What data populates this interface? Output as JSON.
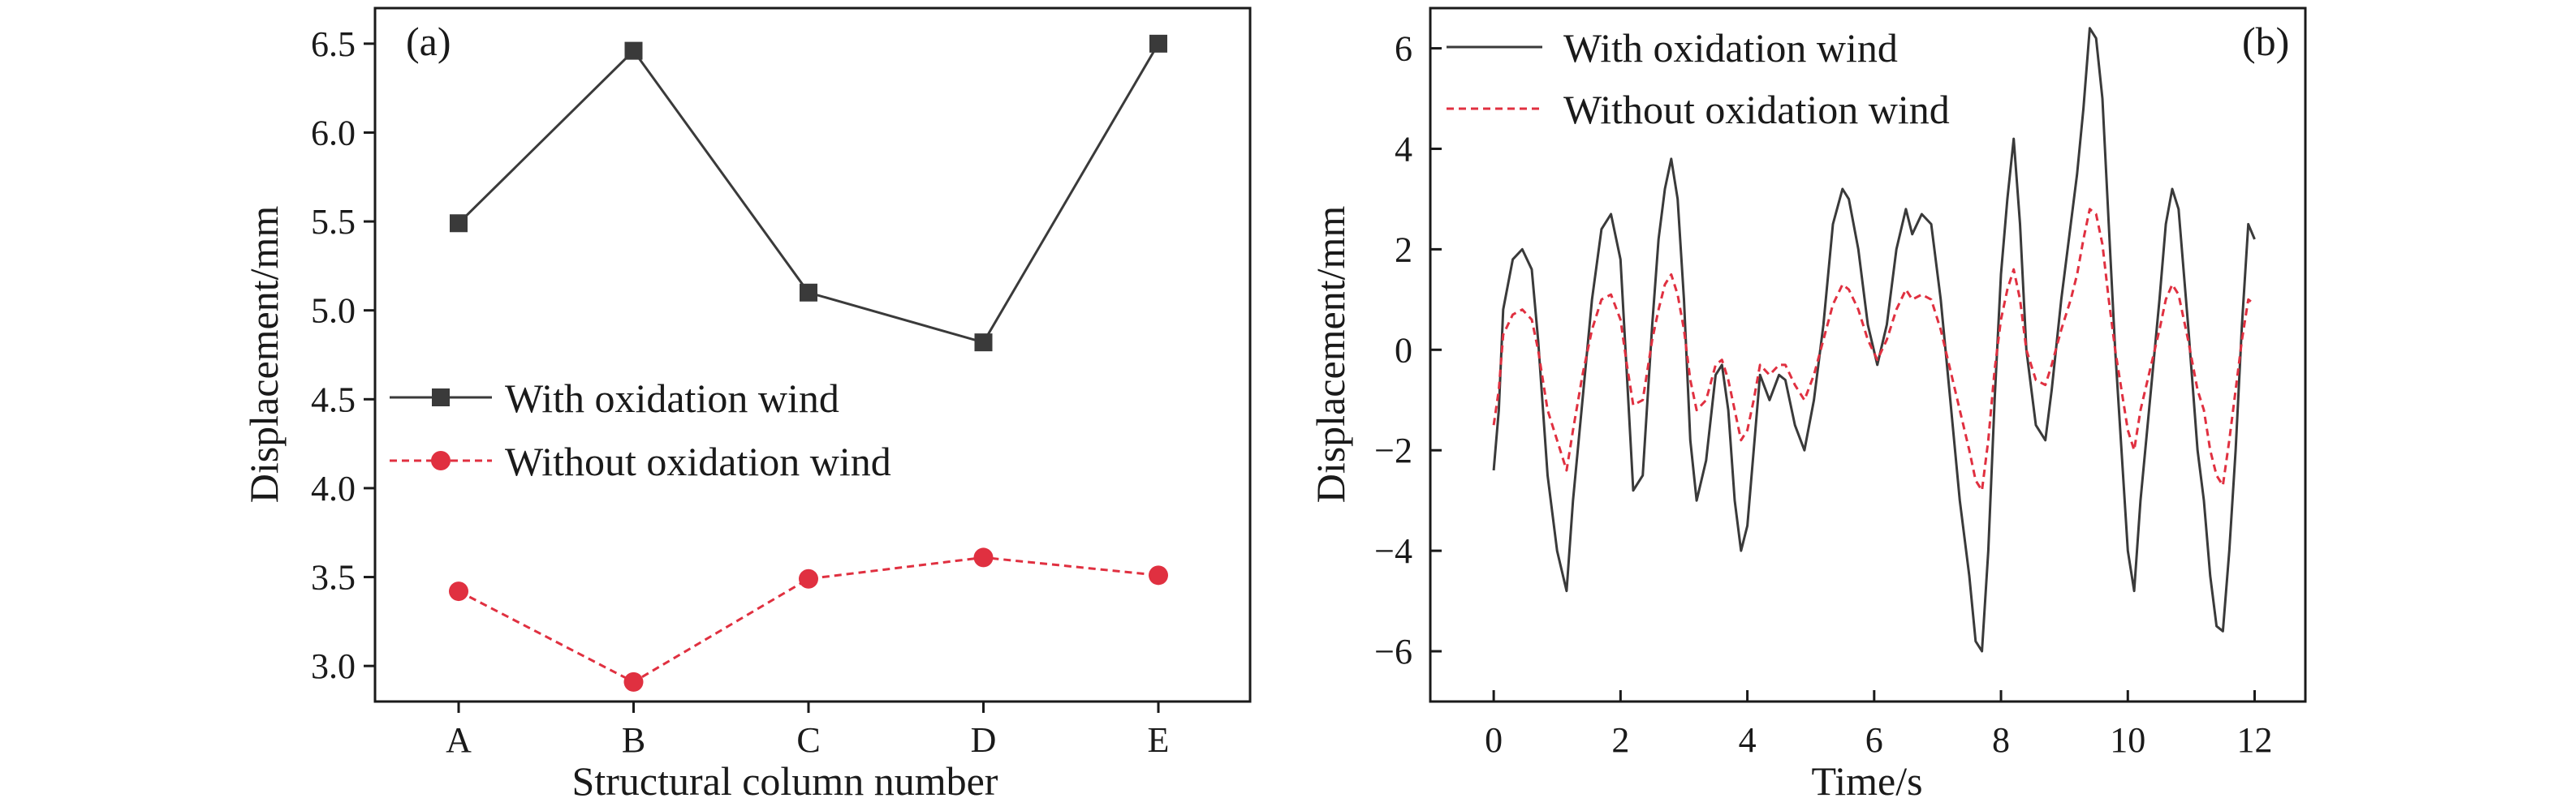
{
  "chart_data": [
    {
      "panel_label": "(a)",
      "type": "line",
      "xlabel": "Structural column number",
      "ylabel": "Displacement/mm",
      "categories": [
        "A",
        "B",
        "C",
        "D",
        "E"
      ],
      "ylim": [
        2.8,
        6.7
      ],
      "yticks": [
        3.0,
        3.5,
        4.0,
        4.5,
        5.0,
        5.5,
        6.0,
        6.5
      ],
      "ytick_labels": [
        "3.0",
        "3.5",
        "4.0",
        "4.5",
        "5.0",
        "5.5",
        "6.0",
        "6.5"
      ],
      "legend_position": "center-left",
      "series": [
        {
          "name": "With oxidation wind",
          "values": [
            5.49,
            6.46,
            5.1,
            4.82,
            6.5
          ],
          "color": "#3a3a3a",
          "marker": "square",
          "line": "solid"
        },
        {
          "name": "Without oxidation wind",
          "values": [
            3.42,
            2.91,
            3.49,
            3.61,
            3.51
          ],
          "color": "#e03040",
          "marker": "circle",
          "line": "dashed"
        }
      ]
    },
    {
      "panel_label": "(b)",
      "type": "line",
      "xlabel": "Time/s",
      "ylabel": "Displacement/mm",
      "xlim": [
        -1,
        12.8
      ],
      "ylim": [
        -7,
        6.8
      ],
      "xticks": [
        0,
        2,
        4,
        6,
        8,
        10,
        12
      ],
      "xtick_labels": [
        "0",
        "2",
        "4",
        "6",
        "8",
        "10",
        "12"
      ],
      "yticks": [
        -6,
        -4,
        -2,
        0,
        2,
        4,
        6
      ],
      "ytick_labels": [
        "−6",
        "−4",
        "−2",
        "0",
        "2",
        "4",
        "6"
      ],
      "legend_position": "top-left",
      "series": [
        {
          "name": "With oxidation wind",
          "color": "#3a3a3a",
          "line": "solid",
          "x": [
            0,
            0.08,
            0.15,
            0.3,
            0.45,
            0.6,
            0.7,
            0.85,
            1.0,
            1.15,
            1.25,
            1.4,
            1.55,
            1.7,
            1.85,
            2.0,
            2.1,
            2.2,
            2.35,
            2.5,
            2.6,
            2.7,
            2.8,
            2.9,
            3.0,
            3.1,
            3.2,
            3.35,
            3.5,
            3.6,
            3.7,
            3.8,
            3.9,
            4.0,
            4.1,
            4.2,
            4.35,
            4.5,
            4.6,
            4.75,
            4.9,
            5.05,
            5.2,
            5.35,
            5.5,
            5.6,
            5.75,
            5.9,
            6.05,
            6.2,
            6.35,
            6.5,
            6.6,
            6.75,
            6.9,
            7.05,
            7.2,
            7.35,
            7.5,
            7.6,
            7.7,
            7.8,
            7.9,
            8.0,
            8.1,
            8.2,
            8.3,
            8.4,
            8.55,
            8.7,
            8.8,
            8.95,
            9.1,
            9.2,
            9.3,
            9.4,
            9.5,
            9.6,
            9.7,
            9.8,
            9.9,
            10.0,
            10.1,
            10.2,
            10.35,
            10.5,
            10.6,
            10.7,
            10.8,
            10.95,
            11.1,
            11.2,
            11.3,
            11.4,
            11.5,
            11.6,
            11.7,
            11.8,
            11.9,
            12.0
          ],
          "y": [
            -2.4,
            -1.2,
            0.8,
            1.8,
            2.0,
            1.6,
            0.2,
            -2.5,
            -4.0,
            -4.8,
            -3.0,
            -1.0,
            1.0,
            2.4,
            2.7,
            1.8,
            -0.5,
            -2.8,
            -2.5,
            0.5,
            2.2,
            3.2,
            3.8,
            3.0,
            1.0,
            -1.8,
            -3.0,
            -2.2,
            -0.5,
            -0.3,
            -1.2,
            -3.0,
            -4.0,
            -3.5,
            -2.0,
            -0.5,
            -1.0,
            -0.5,
            -0.6,
            -1.5,
            -2.0,
            -1.0,
            0.5,
            2.5,
            3.2,
            3.0,
            2.0,
            0.5,
            -0.3,
            0.5,
            2.0,
            2.8,
            2.3,
            2.7,
            2.5,
            1.0,
            -1.0,
            -3.0,
            -4.5,
            -5.8,
            -6.0,
            -4.0,
            -1.0,
            1.5,
            3.0,
            4.2,
            2.5,
            0.0,
            -1.5,
            -1.8,
            -0.8,
            1.0,
            2.5,
            3.5,
            4.8,
            6.4,
            6.2,
            5.0,
            2.5,
            0.0,
            -2.0,
            -4.0,
            -4.8,
            -3.0,
            -1.0,
            1.0,
            2.5,
            3.2,
            2.8,
            0.5,
            -2.0,
            -3.0,
            -4.5,
            -5.5,
            -5.6,
            -4.0,
            -2.0,
            0.5,
            2.5,
            2.2
          ]
        },
        {
          "name": "Without oxidation wind",
          "color": "#e03040",
          "line": "dashed",
          "x": [
            0,
            0.08,
            0.15,
            0.3,
            0.45,
            0.6,
            0.7,
            0.85,
            1.0,
            1.15,
            1.25,
            1.4,
            1.55,
            1.7,
            1.85,
            2.0,
            2.1,
            2.2,
            2.35,
            2.5,
            2.6,
            2.7,
            2.8,
            2.9,
            3.0,
            3.1,
            3.2,
            3.35,
            3.5,
            3.6,
            3.7,
            3.8,
            3.9,
            4.0,
            4.1,
            4.2,
            4.35,
            4.5,
            4.6,
            4.75,
            4.9,
            5.05,
            5.2,
            5.35,
            5.5,
            5.6,
            5.75,
            5.9,
            6.05,
            6.2,
            6.35,
            6.5,
            6.6,
            6.75,
            6.9,
            7.05,
            7.2,
            7.35,
            7.5,
            7.6,
            7.7,
            7.8,
            7.9,
            8.0,
            8.1,
            8.2,
            8.3,
            8.4,
            8.55,
            8.7,
            8.8,
            8.95,
            9.1,
            9.2,
            9.3,
            9.4,
            9.5,
            9.6,
            9.7,
            9.8,
            9.9,
            10.0,
            10.1,
            10.2,
            10.35,
            10.5,
            10.6,
            10.7,
            10.8,
            10.95,
            11.1,
            11.2,
            11.3,
            11.4,
            11.5,
            11.6,
            11.7,
            11.8,
            11.9,
            12.0
          ],
          "y": [
            -1.5,
            -0.8,
            0.3,
            0.7,
            0.8,
            0.6,
            0.0,
            -1.2,
            -1.8,
            -2.4,
            -1.6,
            -0.5,
            0.4,
            1.0,
            1.1,
            0.6,
            -0.3,
            -1.1,
            -1.0,
            0.2,
            0.8,
            1.3,
            1.5,
            1.1,
            0.4,
            -0.6,
            -1.2,
            -1.0,
            -0.3,
            -0.2,
            -0.6,
            -1.2,
            -1.8,
            -1.6,
            -1.0,
            -0.3,
            -0.5,
            -0.3,
            -0.3,
            -0.7,
            -1.0,
            -0.5,
            0.2,
            0.9,
            1.3,
            1.2,
            0.8,
            0.2,
            -0.2,
            0.2,
            0.8,
            1.2,
            1.0,
            1.1,
            1.0,
            0.4,
            -0.4,
            -1.2,
            -2.0,
            -2.6,
            -2.8,
            -1.8,
            -0.4,
            0.6,
            1.2,
            1.6,
            1.0,
            0.0,
            -0.6,
            -0.7,
            -0.3,
            0.4,
            1.0,
            1.5,
            2.2,
            2.8,
            2.7,
            2.1,
            1.0,
            0.0,
            -0.8,
            -1.6,
            -2.0,
            -1.2,
            -0.4,
            0.4,
            1.0,
            1.3,
            1.1,
            0.2,
            -0.8,
            -1.2,
            -2.0,
            -2.5,
            -2.7,
            -1.8,
            -0.8,
            0.2,
            1.0,
            0.9
          ]
        }
      ]
    }
  ]
}
